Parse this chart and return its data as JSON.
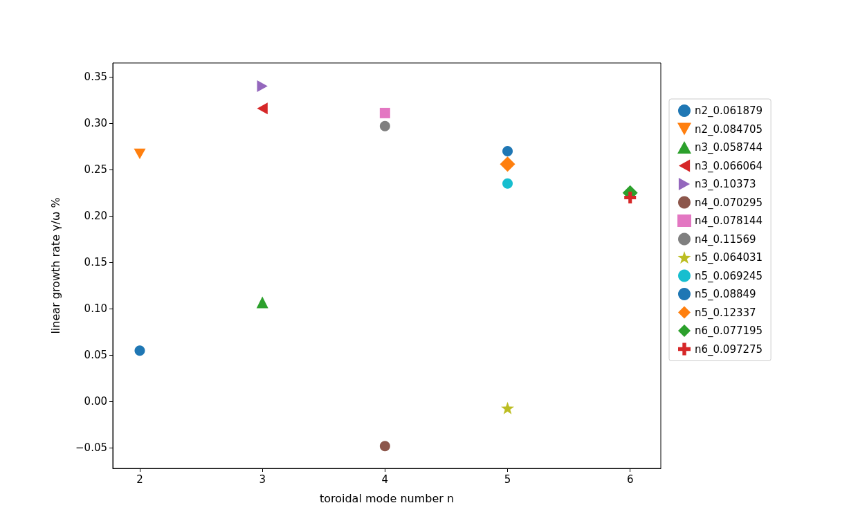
{
  "chart_data": {
    "type": "scatter",
    "xlabel": "toroidal mode number n",
    "ylabel": "linear growth rate γ/ω %",
    "xlim": [
      1.78,
      6.25
    ],
    "xticks": [
      2,
      3,
      4,
      5,
      6
    ],
    "ylim": [
      -0.072,
      0.365
    ],
    "yticks": [
      {
        "value": -0.05,
        "label": "−0.05"
      },
      {
        "value": 0,
        "label": "0.00"
      },
      {
        "value": 0.05,
        "label": "0.05"
      },
      {
        "value": 0.1,
        "label": "0.10"
      },
      {
        "value": 0.15,
        "label": "0.15"
      },
      {
        "value": 0.2,
        "label": "0.20"
      },
      {
        "value": 0.25,
        "label": "0.25"
      },
      {
        "value": 0.3,
        "label": "0.30"
      },
      {
        "value": 0.35,
        "label": "0.35"
      }
    ],
    "grid": false,
    "legend": "right",
    "series": [
      {
        "name": "n2_0.061879",
        "color": "#1f77b4",
        "marker": "circle",
        "x": [
          2
        ],
        "values": [
          0.055
        ]
      },
      {
        "name": "n2_0.084705",
        "color": "#ff7f0e",
        "marker": "triangle-down",
        "x": [
          2
        ],
        "values": [
          0.267
        ]
      },
      {
        "name": "n3_0.058744",
        "color": "#2ca02c",
        "marker": "triangle",
        "x": [
          3
        ],
        "values": [
          0.107
        ]
      },
      {
        "name": "n3_0.066064",
        "color": "#d62728",
        "marker": "triangle-left",
        "x": [
          3
        ],
        "values": [
          0.316
        ]
      },
      {
        "name": "n3_0.10373",
        "color": "#9467bd",
        "marker": "triangle-right",
        "x": [
          3
        ],
        "values": [
          0.34
        ]
      },
      {
        "name": "n4_0.070295",
        "color": "#8c564b",
        "marker": "circle",
        "x": [
          4
        ],
        "values": [
          -0.048
        ]
      },
      {
        "name": "n4_0.078144",
        "color": "#e377c2",
        "marker": "square",
        "x": [
          4
        ],
        "values": [
          0.311
        ]
      },
      {
        "name": "n4_0.11569",
        "color": "#7f7f7f",
        "marker": "circle",
        "x": [
          4
        ],
        "values": [
          0.297
        ]
      },
      {
        "name": "n5_0.064031",
        "color": "#bcbd22",
        "marker": "star",
        "x": [
          5
        ],
        "values": [
          -0.007
        ]
      },
      {
        "name": "n5_0.069245",
        "color": "#17becf",
        "marker": "circle",
        "x": [
          5
        ],
        "values": [
          0.235
        ]
      },
      {
        "name": "n5_0.08849",
        "color": "#1f77b4",
        "marker": "circle",
        "x": [
          5
        ],
        "values": [
          0.27
        ]
      },
      {
        "name": "n5_0.12337",
        "color": "#ff7f0e",
        "marker": "diamond",
        "x": [
          5
        ],
        "values": [
          0.256
        ]
      },
      {
        "name": "n6_0.077195",
        "color": "#2ca02c",
        "marker": "diamond",
        "x": [
          6
        ],
        "values": [
          0.225
        ]
      },
      {
        "name": "n6_0.097275",
        "color": "#d62728",
        "marker": "plus",
        "x": [
          6
        ],
        "values": [
          0.22
        ]
      }
    ]
  }
}
